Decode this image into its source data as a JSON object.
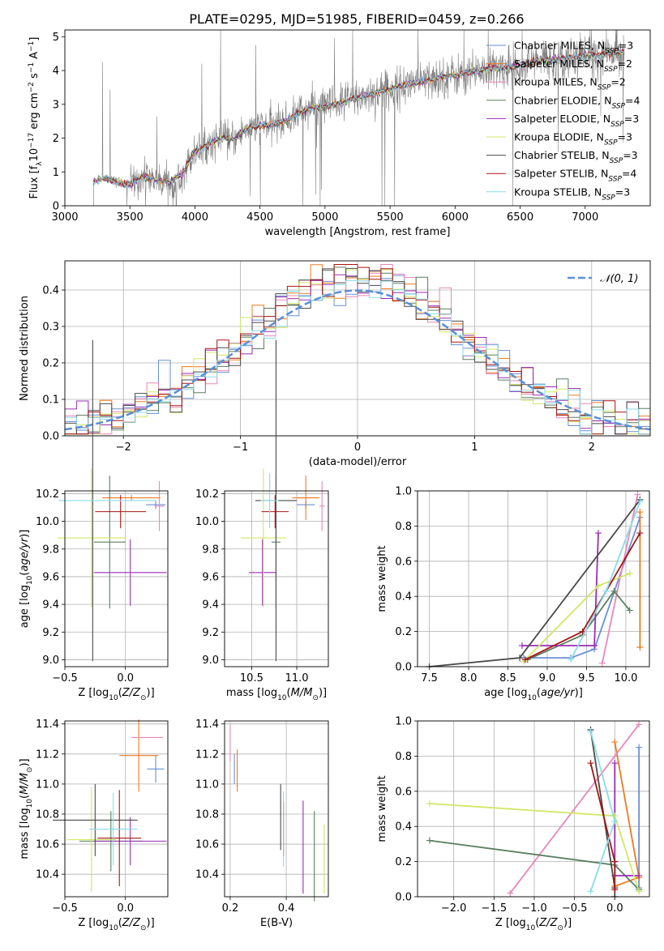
{
  "figure": {
    "title": "PLATE=0295, MJD=51985, FIBERID=0459, z=0.266"
  },
  "colors": {
    "spectrum": "#808080",
    "grid": "#b0b0b0",
    "gaussian": "#5b8fd6",
    "models": [
      "#6a8fd6",
      "#f07a1d",
      "#e987b8",
      "#5a7f5f",
      "#9b2db8",
      "#cfe865",
      "#4a4a4a",
      "#a81414",
      "#89dbe8"
    ]
  },
  "legend_spectrum": [
    {
      "imf": "Chabrier",
      "lib": "MILES",
      "n": "3"
    },
    {
      "imf": "Salpeter",
      "lib": "MILES",
      "n": "2"
    },
    {
      "imf": "Kroupa",
      "lib": "MILES",
      "n": "2"
    },
    {
      "imf": "Chabrier",
      "lib": "ELODIE",
      "n": "4"
    },
    {
      "imf": "Salpeter",
      "lib": "ELODIE",
      "n": "3"
    },
    {
      "imf": "Kroupa",
      "lib": "ELODIE",
      "n": "3"
    },
    {
      "imf": "Chabrier",
      "lib": "STELIB",
      "n": "3"
    },
    {
      "imf": "Salpeter",
      "lib": "STELIB",
      "n": "4"
    },
    {
      "imf": "Kroupa",
      "lib": "STELIB",
      "n": "3"
    }
  ],
  "gaussian_label": "𝒩(0, 1)",
  "chart_data": [
    {
      "id": "spectrum",
      "type": "line",
      "xlabel": "wavelength [Angstrom, rest frame]",
      "ylabel": "Flux [f",
      "xlim": [
        3000,
        7500
      ],
      "ylim": [
        0,
        5.2
      ],
      "xticks": [
        3000,
        3500,
        4000,
        4500,
        5000,
        5500,
        6000,
        6500,
        7000
      ],
      "yticks": [
        0,
        1,
        2,
        3,
        4,
        5
      ],
      "x": [
        3220,
        3300,
        3400,
        3500,
        3600,
        3700,
        3800,
        3900,
        4000,
        4100,
        4200,
        4300,
        4400,
        4500,
        4600,
        4700,
        4800,
        4900,
        5000,
        5100,
        5200,
        5300,
        5400,
        5500,
        5600,
        5700,
        5800,
        5900,
        6000,
        6100,
        6200,
        6300,
        6400,
        6500,
        6600,
        6700,
        6800,
        6900,
        7000,
        7100,
        7200,
        7300
      ],
      "model_flux": [
        0.72,
        0.82,
        0.7,
        0.62,
        0.85,
        0.78,
        0.7,
        0.95,
        1.6,
        1.8,
        2.0,
        1.95,
        2.3,
        2.35,
        2.4,
        2.5,
        2.75,
        2.9,
        2.95,
        3.0,
        3.15,
        3.25,
        3.35,
        3.45,
        3.55,
        3.65,
        3.7,
        3.8,
        3.85,
        3.95,
        4.0,
        4.05,
        4.1,
        4.15,
        4.25,
        4.3,
        4.35,
        4.4,
        4.45,
        4.45,
        4.5,
        4.55
      ],
      "grid": false,
      "legend_loc": "upper right"
    },
    {
      "id": "residuals",
      "type": "step",
      "xlabel": "(data-model)/error",
      "ylabel": "Normed distribution",
      "xlim": [
        -2.5,
        2.5
      ],
      "ylim": [
        0,
        0.48
      ],
      "xticks": [
        -2,
        -1,
        0,
        1,
        2
      ],
      "yticks": [
        0.0,
        0.1,
        0.2,
        0.3,
        0.4
      ],
      "bin_width": 0.1,
      "grid": true,
      "legend_loc": "upper right"
    },
    {
      "id": "age_vs_Z",
      "type": "errorbar",
      "xlabel": "Z [log",
      "ylabel": "age  [log",
      "xlim": [
        -0.5,
        0.35
      ],
      "ylim": [
        8.95,
        10.22
      ],
      "xticks": [
        -0.5,
        0.0
      ],
      "xticklabels": [
        "−0.5",
        "0.0"
      ],
      "yticks": [
        9.0,
        9.2,
        9.4,
        9.6,
        9.8,
        10.0,
        10.2
      ],
      "points": [
        {
          "x": 0.25,
          "y": 10.12,
          "xerr": 0.08,
          "yerr": 0.03
        },
        {
          "x": 0.05,
          "y": 10.17,
          "xerr": 0.24,
          "yerr": 0.02
        },
        {
          "x": 0.28,
          "y": 10.11,
          "xerr": 0.04,
          "yerr": 0.18
        },
        {
          "x": -0.13,
          "y": 9.85,
          "xerr": 0.13,
          "yerr": 0.48
        },
        {
          "x": 0.04,
          "y": 9.63,
          "xerr": 0.3,
          "yerr": 0.24
        },
        {
          "x": -0.28,
          "y": 9.88,
          "xerr": 0.28,
          "yerr": 0.5
        },
        {
          "x": -0.27,
          "y": 10.15,
          "xerr": 0.0,
          "yerr": 1.16
        },
        {
          "x": -0.04,
          "y": 10.07,
          "xerr": 0.21,
          "yerr": 0.12
        },
        {
          "x": -0.15,
          "y": 10.15,
          "xerr": 0.4,
          "yerr": 0.0
        }
      ],
      "grid": true
    },
    {
      "id": "age_vs_mass",
      "type": "errorbar",
      "xlabel": "mass [log",
      "ylabel": "",
      "xlim": [
        10.2,
        11.35
      ],
      "ylim": [
        8.95,
        10.22
      ],
      "xticks": [
        10.5,
        11.0
      ],
      "yticks": [
        9.0,
        9.2,
        9.4,
        9.6,
        9.8,
        10.0,
        10.2
      ],
      "points": [
        {
          "x": 11.1,
          "y": 10.12,
          "xerr": 0.1,
          "yerr": 0.03
        },
        {
          "x": 11.1,
          "y": 10.17,
          "xerr": 0.15,
          "yerr": 0.16
        },
        {
          "x": 11.28,
          "y": 10.11,
          "xerr": 0.03,
          "yerr": 0.18
        },
        {
          "x": 10.77,
          "y": 9.85,
          "xerr": 0.05,
          "yerr": 0.48
        },
        {
          "x": 10.62,
          "y": 9.63,
          "xerr": 0.15,
          "yerr": 0.24
        },
        {
          "x": 10.63,
          "y": 9.88,
          "xerr": 0.25,
          "yerr": 0.5
        },
        {
          "x": 10.77,
          "y": 10.15,
          "xerr": 0.23,
          "yerr": 1.16
        },
        {
          "x": 10.76,
          "y": 10.07,
          "xerr": 0.15,
          "yerr": 0.12
        },
        {
          "x": 10.7,
          "y": 10.15,
          "xerr": 0.1,
          "yerr": 0.2
        }
      ],
      "grid": true
    },
    {
      "id": "weights_vs_age",
      "type": "line",
      "xlabel": "age  [log",
      "ylabel": "mass weight",
      "xlim": [
        7.35,
        10.3
      ],
      "ylim": [
        0,
        1
      ],
      "xticks": [
        7.5,
        8.0,
        8.5,
        9.0,
        9.5,
        10.0
      ],
      "yticks": [
        0.0,
        0.2,
        0.4,
        0.6,
        0.8,
        1.0
      ],
      "series": [
        {
          "x": [
            8.7,
            9.3,
            9.6,
            10.18
          ],
          "y": [
            0.05,
            0.05,
            0.1,
            0.85
          ]
        },
        {
          "x": [
            10.18,
            10.18
          ],
          "y": [
            0.11,
            0.88
          ]
        },
        {
          "x": [
            9.7,
            10.15
          ],
          "y": [
            0.02,
            0.98
          ]
        },
        {
          "x": [
            8.75,
            9.45,
            9.85,
            10.05
          ],
          "y": [
            0.04,
            0.18,
            0.43,
            0.32
          ]
        },
        {
          "x": [
            8.68,
            9.6,
            9.65
          ],
          "y": [
            0.12,
            0.12,
            0.76
          ]
        },
        {
          "x": [
            8.7,
            9.65,
            10.05
          ],
          "y": [
            0.03,
            0.46,
            0.53
          ]
        },
        {
          "x": [
            7.5,
            8.65,
            10.18
          ],
          "y": [
            0.0,
            0.05,
            0.95
          ]
        },
        {
          "x": [
            8.72,
            9.45,
            10.18
          ],
          "y": [
            0.04,
            0.2,
            0.76
          ]
        },
        {
          "x": [
            9.3,
            9.75,
            10.18
          ],
          "y": [
            0.04,
            0.43,
            0.94
          ]
        }
      ],
      "grid": true
    },
    {
      "id": "mass_vs_Z",
      "type": "errorbar",
      "xlabel": "Z [log",
      "ylabel": "mass [log",
      "xlim": [
        -0.5,
        0.35
      ],
      "ylim": [
        10.25,
        11.42
      ],
      "xticks": [
        -0.5,
        0.0
      ],
      "xticklabels": [
        "−0.5",
        "0.0"
      ],
      "yticks": [
        10.4,
        10.6,
        10.8,
        11.0,
        11.2,
        11.4
      ],
      "points": [
        {
          "x": 0.25,
          "y": 11.1,
          "xerr": 0.07,
          "yerr": 0.09
        },
        {
          "x": 0.11,
          "y": 11.19,
          "xerr": 0.16,
          "yerr": 0.24
        },
        {
          "x": 0.18,
          "y": 11.31,
          "xerr": 0.13,
          "yerr": 0.0
        },
        {
          "x": -0.12,
          "y": 10.62,
          "xerr": 0.26,
          "yerr": 0.2
        },
        {
          "x": 0.04,
          "y": 10.62,
          "xerr": 0.3,
          "yerr": 0.16
        },
        {
          "x": -0.28,
          "y": 10.63,
          "xerr": 0.2,
          "yerr": 0.35
        },
        {
          "x": -0.25,
          "y": 10.76,
          "xerr": 0.35,
          "yerr": 0.24
        },
        {
          "x": -0.05,
          "y": 10.64,
          "xerr": 0.18,
          "yerr": 0.32
        },
        {
          "x": -0.1,
          "y": 10.7,
          "xerr": 0.2,
          "yerr": 0.24
        }
      ],
      "grid": true
    },
    {
      "id": "mass_vs_EBV",
      "type": "errorbar",
      "xlabel": "E(B-V)",
      "ylabel": "",
      "xlim": [
        0.18,
        0.55
      ],
      "ylim": [
        10.25,
        11.42
      ],
      "xticks": [
        0.2,
        0.4
      ],
      "yticks": [
        10.4,
        10.6,
        10.8,
        11.0,
        11.2,
        11.4
      ],
      "points": [
        {
          "x": 0.215,
          "y": 11.1,
          "xerr": 0.0,
          "yerr": 0.1
        },
        {
          "x": 0.225,
          "y": 11.09,
          "xerr": 0.0,
          "yerr": 0.14
        },
        {
          "x": 0.2,
          "y": 11.27,
          "xerr": 0.0,
          "yerr": 0.12
        },
        {
          "x": 0.5,
          "y": 10.52,
          "xerr": 0.0,
          "yerr": 0.3
        },
        {
          "x": 0.46,
          "y": 10.58,
          "xerr": 0.0,
          "yerr": 0.31
        },
        {
          "x": 0.535,
          "y": 10.5,
          "xerr": 0.0,
          "yerr": 0.23
        },
        {
          "x": 0.38,
          "y": 10.78,
          "xerr": 0.0,
          "yerr": 0.22
        },
        {
          "x": 0.39,
          "y": 10.7,
          "xerr": 0.0,
          "yerr": 0.18
        },
        {
          "x": 0.39,
          "y": 10.7,
          "xerr": 0.0,
          "yerr": 0.25
        }
      ],
      "grid": true
    },
    {
      "id": "weights_vs_Z",
      "type": "line",
      "xlabel": "Z [log",
      "ylabel": "mass weight",
      "xlim": [
        -2.45,
        0.43
      ],
      "ylim": [
        0,
        1
      ],
      "xticks": [
        -2.0,
        -1.5,
        -1.0,
        -0.5,
        0.0
      ],
      "xticklabels": [
        "−2.0",
        "−1.5",
        "−1.0",
        "−0.5",
        "0.0"
      ],
      "yticks": [
        0.0,
        0.2,
        0.4,
        0.6,
        0.8,
        1.0
      ],
      "series": [
        {
          "x": [
            0.3,
            0.3,
            0.3
          ],
          "y": [
            0.85,
            0.05,
            0.12
          ]
        },
        {
          "x": [
            0.0,
            0.3,
            0.0
          ],
          "y": [
            0.88,
            0.11,
            0.06
          ]
        },
        {
          "x": [
            -1.3,
            0.3
          ],
          "y": [
            0.02,
            0.98
          ]
        },
        {
          "x": [
            -2.3,
            0.0,
            0.3
          ],
          "y": [
            0.32,
            0.18,
            0.04
          ]
        },
        {
          "x": [
            0.0,
            0.0,
            0.3
          ],
          "y": [
            0.76,
            0.12,
            0.12
          ]
        },
        {
          "x": [
            -2.3,
            0.0,
            0.3
          ],
          "y": [
            0.53,
            0.46,
            0.03
          ]
        },
        {
          "x": [
            -0.3,
            0.0,
            0.0
          ],
          "y": [
            0.95,
            0.05,
            0.0
          ]
        },
        {
          "x": [
            -0.3,
            0.0,
            0.0
          ],
          "y": [
            0.76,
            0.2,
            0.04
          ]
        },
        {
          "x": [
            -0.3,
            0.0,
            -0.3
          ],
          "y": [
            0.94,
            0.43,
            0.03
          ]
        }
      ],
      "grid": true
    }
  ]
}
